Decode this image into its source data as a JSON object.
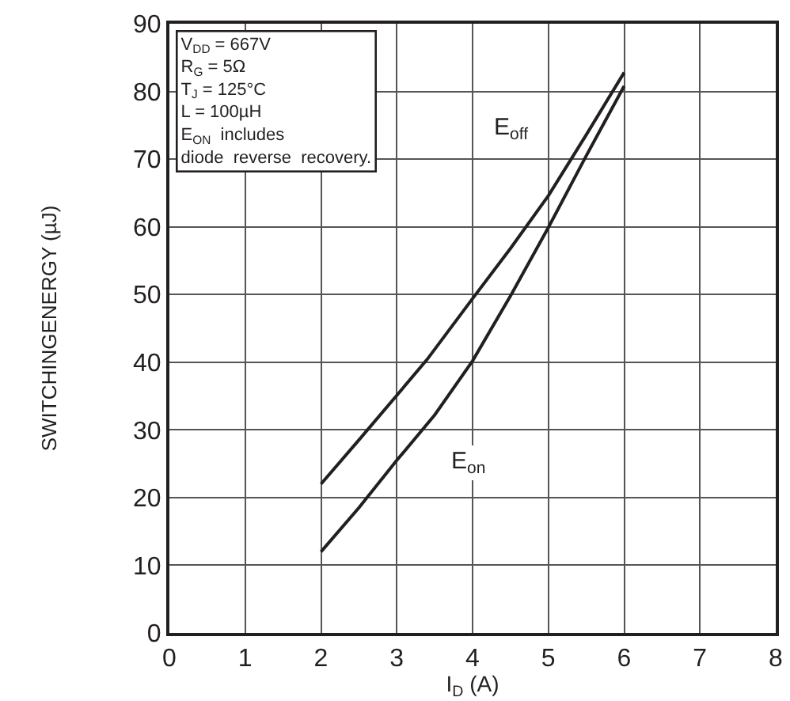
{
  "chart_data": {
    "type": "line",
    "xlabel": "I$_{D}$ (A)",
    "ylabel": "SWITCHINGENERGY (µJ)",
    "xlim": [
      0,
      8
    ],
    "xticks": [
      0,
      1,
      2,
      3,
      4,
      5,
      6,
      7,
      8
    ],
    "ylim": [
      0,
      90
    ],
    "yticks": [
      0,
      10,
      20,
      30,
      40,
      50,
      60,
      70,
      80,
      90
    ],
    "grid": true,
    "marker": "none",
    "line_style": "solid",
    "series": [
      {
        "name": "E$_{off}$",
        "color": "#231f20",
        "x": [
          2,
          2.5,
          3,
          3.4,
          4,
          4.5,
          5,
          5.5,
          6
        ],
        "values": [
          22,
          28.5,
          35.1,
          40.4,
          49.4,
          56.8,
          64.6,
          73.6,
          82.8
        ]
      },
      {
        "name": "E$_{on}$",
        "color": "#231f20",
        "x": [
          2,
          2.5,
          3,
          3.5,
          4,
          4.5,
          5,
          5.5,
          6
        ],
        "values": [
          12,
          18.5,
          25.5,
          32.2,
          40.2,
          49.8,
          59.9,
          70.5,
          80.8
        ]
      }
    ],
    "annotations": [
      "V$_{DD}$ = 667V",
      "R$_{G}$ = 5Ω",
      "T$_{J}$ = 125°C",
      "L = 100µH",
      "E$_{ON}$  includes",
      "diode  reverse  recovery."
    ]
  }
}
